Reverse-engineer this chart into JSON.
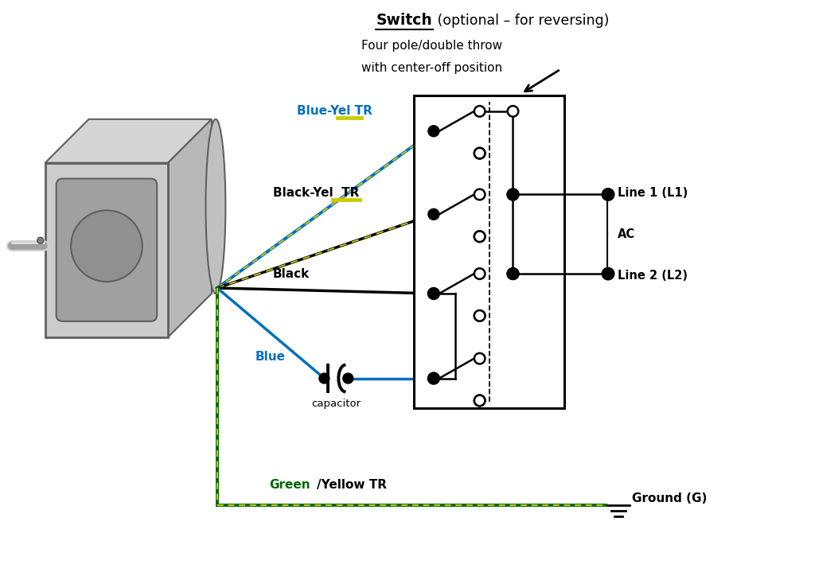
{
  "bg_color": "#ffffff",
  "title_switch_bold": "Switch",
  "title_switch_normal": " (optional – for reversing)",
  "subtitle1": "Four pole/double throw",
  "subtitle2": "with center-off position",
  "label_blue_yel": "Blue-Yel TR",
  "label_black_yel": "Black-Yel  TR",
  "label_black": "Black",
  "label_blue": "Blue",
  "label_capacitor": "capacitor",
  "label_green": "Green",
  "label_yellow_tr": "/Yellow TR",
  "label_ground": "Ground (G)",
  "label_line1": "Line 1 (L1)",
  "label_line2": "Line 2 (L2)",
  "label_ac": "AC",
  "color_blue": "#0070C0",
  "color_green": "#006600",
  "color_yellow": "#CCCC00",
  "color_black": "#000000",
  "color_white": "#ffffff",
  "motor_body1": "#c8c8c8",
  "motor_body2": "#b0b0b0",
  "motor_body3": "#989898",
  "motor_face": "#a8a8a8",
  "motor_edge": "#606060",
  "motor_shaft": "#d0d0d0"
}
